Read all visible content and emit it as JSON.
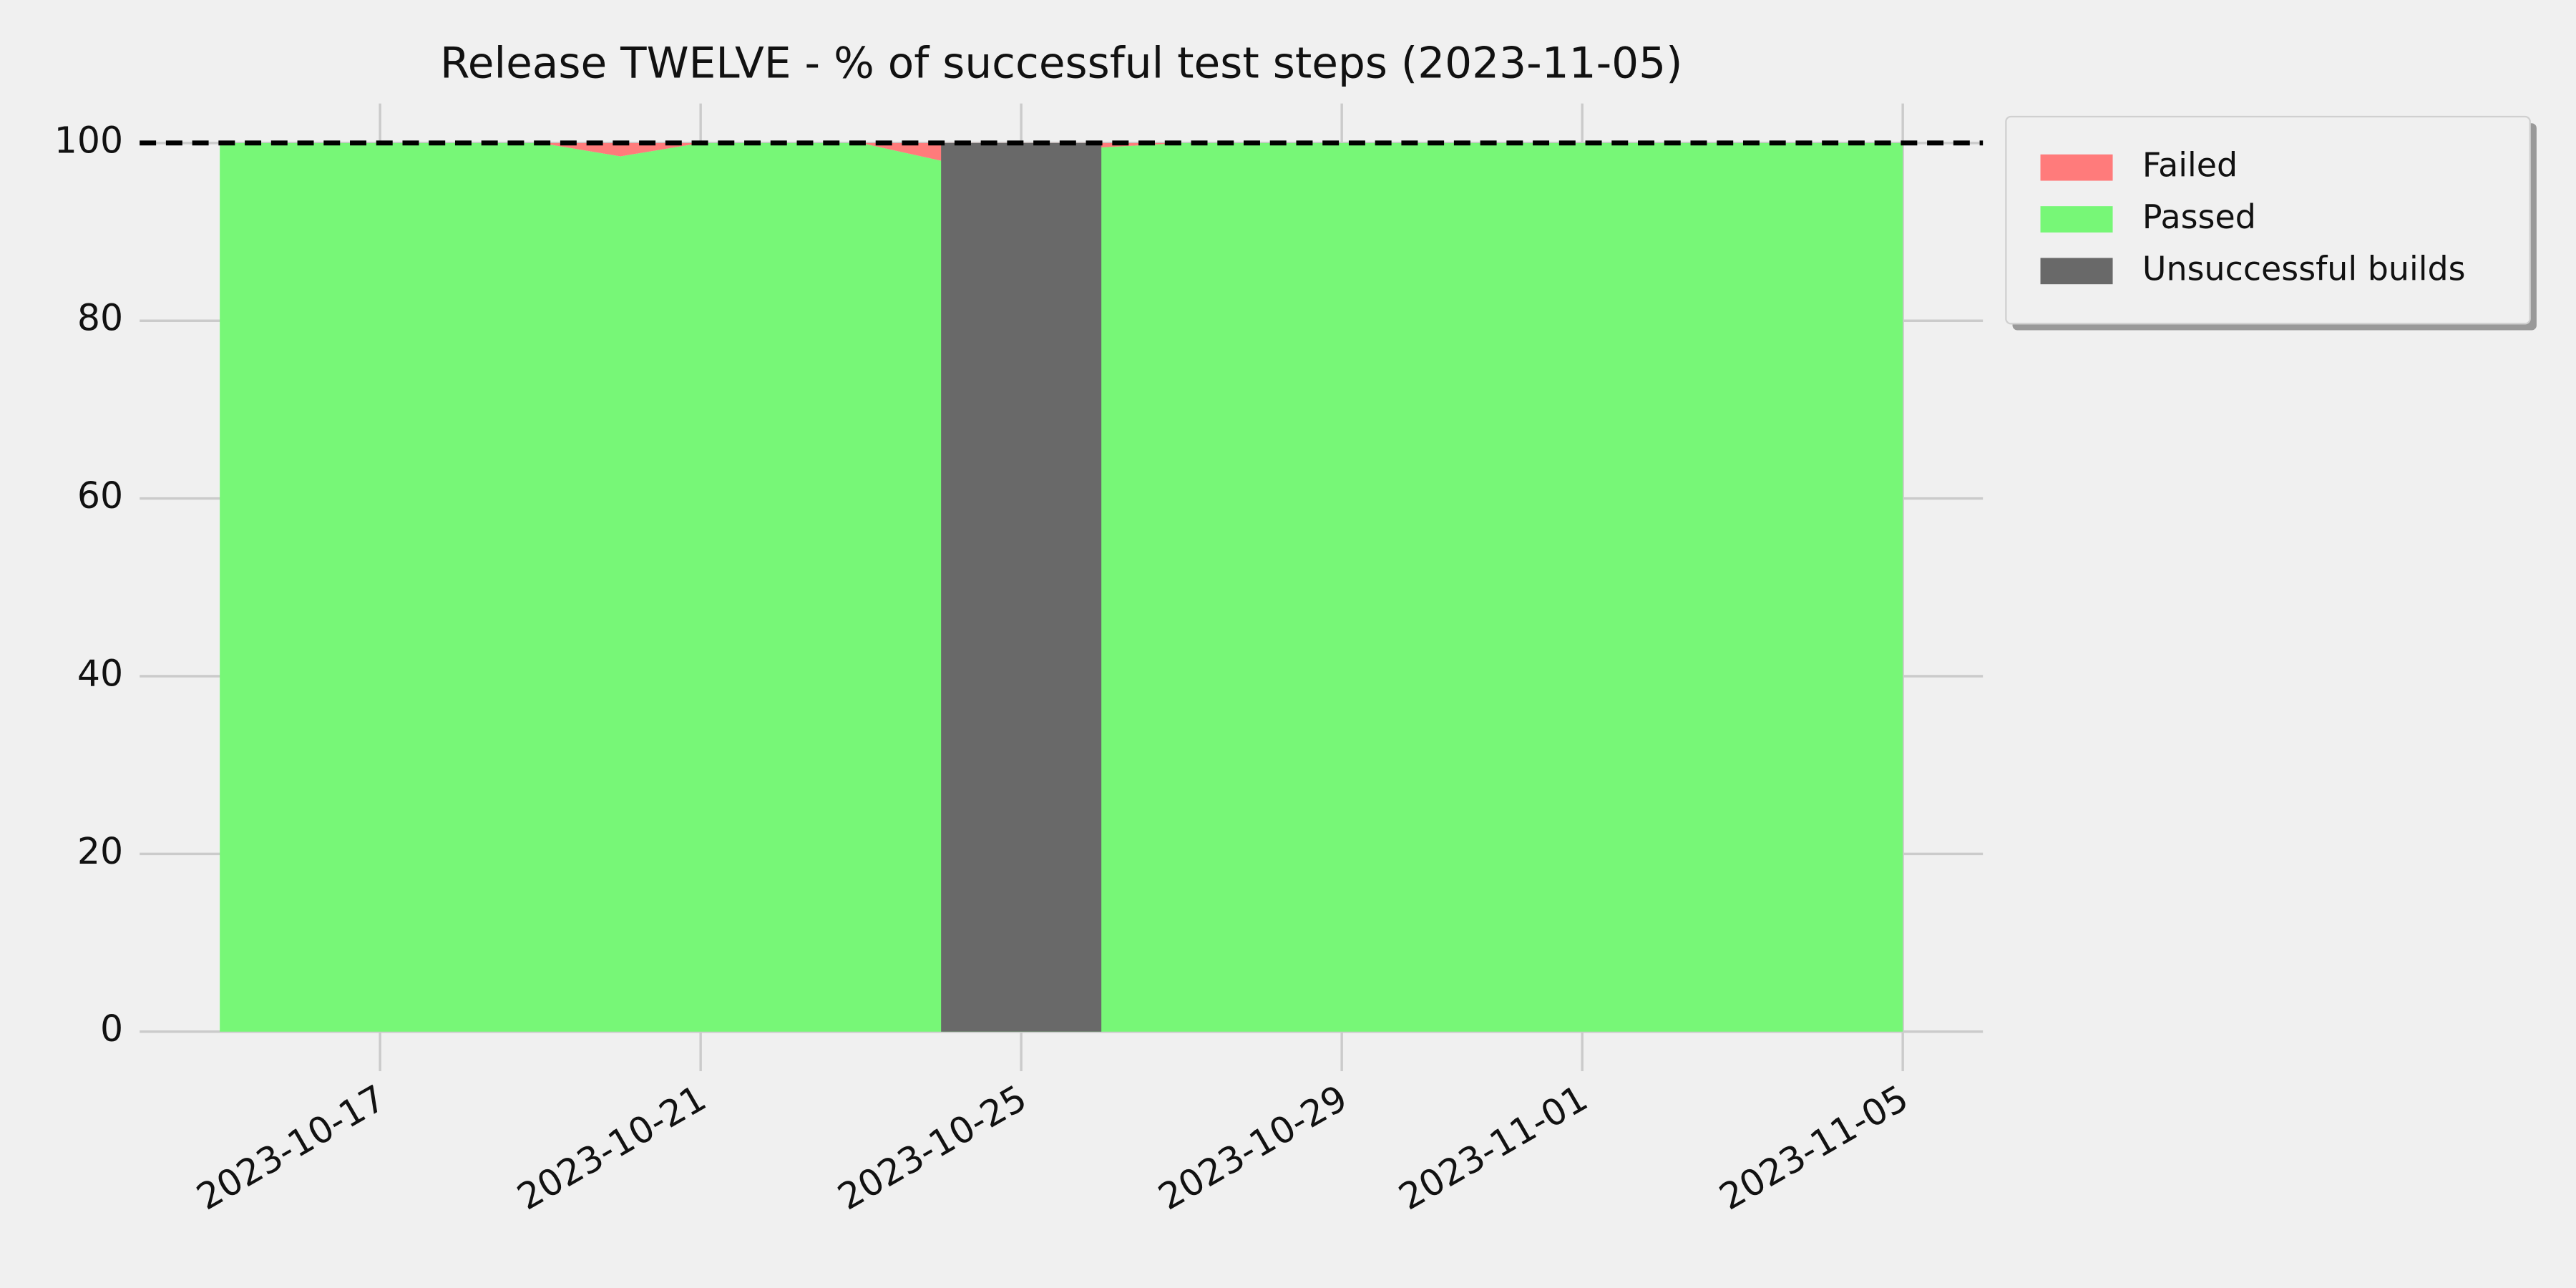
{
  "chart_data": {
    "type": "area",
    "title": "Release TWELVE - % of successful test steps (2023-11-05)",
    "x": [
      "2023-10-15",
      "2023-10-16",
      "2023-10-17",
      "2023-10-18",
      "2023-10-19",
      "2023-10-20",
      "2023-10-21",
      "2023-10-22",
      "2023-10-23",
      "2023-10-24",
      "2023-10-25",
      "2023-10-26",
      "2023-10-27",
      "2023-10-28",
      "2023-10-29",
      "2023-10-30",
      "2023-10-31",
      "2023-11-01",
      "2023-11-02",
      "2023-11-03",
      "2023-11-04",
      "2023-11-05"
    ],
    "series": [
      {
        "name": "Failed",
        "color": "#ff7b7b",
        "values": [
          0,
          0,
          0,
          0,
          0,
          1.5,
          0,
          0,
          0,
          2,
          0,
          0.5,
          0,
          0,
          0,
          0,
          0,
          0,
          0,
          0,
          0,
          0
        ]
      },
      {
        "name": "Passed",
        "color": "#77f777",
        "values": [
          100,
          100,
          100,
          100,
          100,
          98.5,
          100,
          100,
          100,
          98,
          100,
          99.5,
          100,
          100,
          100,
          100,
          100,
          100,
          100,
          100,
          100,
          100
        ]
      },
      {
        "name": "Unsuccessful builds",
        "color": "#696969",
        "values": [
          null,
          null,
          null,
          null,
          null,
          null,
          null,
          null,
          null,
          100,
          100,
          100,
          null,
          null,
          null,
          null,
          null,
          null,
          null,
          null,
          null,
          null
        ]
      }
    ],
    "hline": 100,
    "xlim": [
      "2023-10-14",
      "2023-11-06"
    ],
    "xticks": [
      "2023-10-17",
      "2023-10-21",
      "2023-10-25",
      "2023-10-29",
      "2023-11-01",
      "2023-11-05"
    ],
    "ylim": [
      -5,
      105
    ],
    "yticks": [
      0,
      20,
      40,
      60,
      80,
      100
    ],
    "grid": true,
    "legend": "outside upper right"
  }
}
